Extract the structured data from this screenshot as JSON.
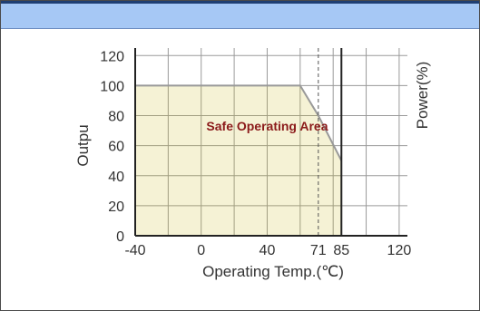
{
  "window": {
    "title": ""
  },
  "chart_data": {
    "type": "line",
    "title": "",
    "xlabel": "Operating Temp.(℃)",
    "ylabel": "Output Power(%)",
    "ylabel_visible": "Outpu",
    "right_label": "Power(%)",
    "xlim": [
      -40,
      125
    ],
    "ylim": [
      0,
      125
    ],
    "x_ticks": [
      -40,
      0,
      40,
      71,
      85,
      120
    ],
    "y_ticks": [
      0,
      20,
      40,
      60,
      80,
      100,
      120
    ],
    "grid": true,
    "series": [
      {
        "x": [
          -40,
          60,
          71,
          85
        ],
        "y": [
          100,
          100,
          80,
          50
        ]
      }
    ],
    "markers": [
      71,
      85
    ],
    "annotation": "Safe Operating Area",
    "colors": {
      "curve": "#999999",
      "area": "#c9b815",
      "marker": "#555555"
    }
  }
}
